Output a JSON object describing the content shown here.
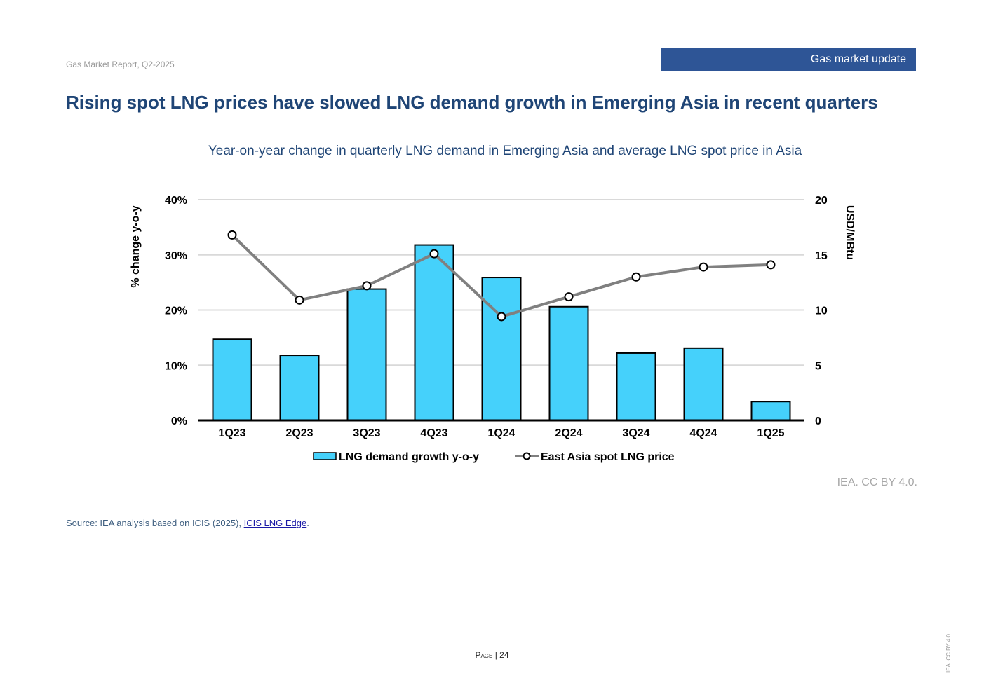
{
  "header": {
    "report_name": "Gas Market Report, Q2-2025",
    "section": "Gas market update"
  },
  "page_title": "Rising spot LNG prices have slowed LNG demand growth in Emerging Asia in recent quarters",
  "chart_data": {
    "type": "bar",
    "title": "Year-on-year change in quarterly LNG demand in Emerging Asia and average LNG spot price in Asia",
    "categories": [
      "1Q23",
      "2Q23",
      "3Q23",
      "4Q23",
      "1Q24",
      "2Q24",
      "3Q24",
      "4Q24",
      "1Q25"
    ],
    "series": [
      {
        "name": "LNG demand growth y-o-y",
        "type": "bar",
        "axis": "left",
        "values": [
          0.147,
          0.118,
          0.238,
          0.318,
          0.259,
          0.206,
          0.122,
          0.131,
          0.034
        ],
        "color": "#45d1fb"
      },
      {
        "name": "East Asia spot LNG price",
        "type": "line",
        "axis": "right",
        "values": [
          16.8,
          10.9,
          12.2,
          15.1,
          9.4,
          11.2,
          13.0,
          13.9,
          14.1
        ],
        "color": "#808080"
      }
    ],
    "ylabel": "% change y-o-y",
    "ylabel_right": "USD/MBtu",
    "ylim": [
      0,
      0.4
    ],
    "ylim_right": [
      0,
      20
    ],
    "yticks": [
      "0%",
      "10%",
      "20%",
      "30%",
      "40%"
    ],
    "yticks_right": [
      "0",
      "5",
      "10",
      "15",
      "20"
    ],
    "grid": true,
    "legend_position": "bottom"
  },
  "credit": "IEA. CC BY 4.0.",
  "source": {
    "prefix": "Source: IEA analysis based on ICIS (2025), ",
    "link_text": "ICIS LNG Edge",
    "suffix": "."
  },
  "footer": {
    "page_word": "Page",
    "page_number": "| 24",
    "side_note": "IEA. CC BY 4.0."
  }
}
